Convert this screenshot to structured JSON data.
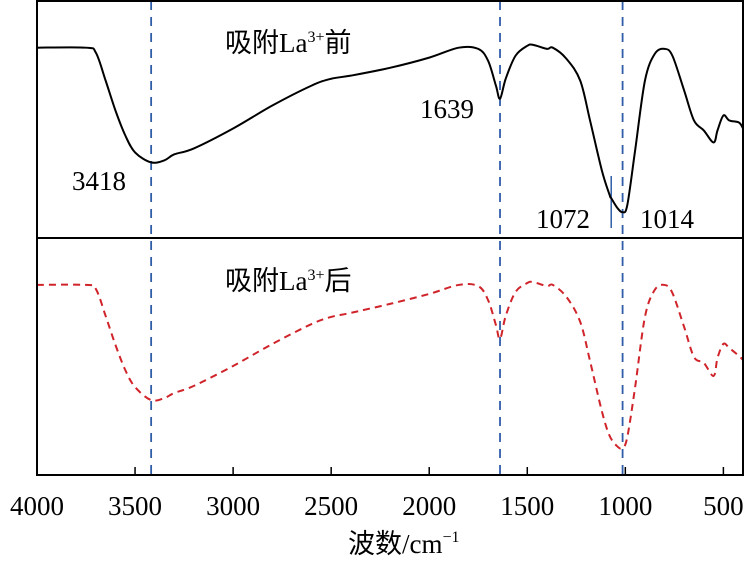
{
  "chart_data": {
    "type": "line",
    "title": "",
    "xlabel": "波数/cm⁻¹",
    "xlabel_parts": {
      "main": "波数/cm",
      "sup": "−1"
    },
    "ylabel": "",
    "xlim": [
      4000,
      400
    ],
    "x_reversed": true,
    "xticks": [
      4000,
      3500,
      3000,
      2500,
      2000,
      1500,
      1000,
      500
    ],
    "xtick_labels": [
      "4000",
      "3500",
      "3000",
      "2500",
      "2000",
      "1500",
      "1000",
      "500"
    ],
    "ylim": [
      0,
      100
    ],
    "y_units": "relative transmittance (a.u.)",
    "grid": false,
    "colors": {
      "before": "#000000",
      "after": "#d0242b",
      "reference": "#2f5ea8"
    },
    "reference_lines": [
      3418,
      1639,
      1014
    ],
    "minor_marker": 1072,
    "panels": [
      {
        "name": "before",
        "title_parts": {
          "main": "吸附La",
          "sup": "3+",
          "suffix": "前"
        },
        "line_style": "solid",
        "peak_labels": [
          "3418",
          "1639",
          "1072",
          "1014"
        ],
        "x": [
          4000,
          3750,
          3700,
          3650,
          3600,
          3550,
          3500,
          3418,
          3350,
          3300,
          3200,
          3000,
          2800,
          2600,
          2500,
          2400,
          2200,
          2000,
          1850,
          1750,
          1700,
          1660,
          1639,
          1610,
          1560,
          1500,
          1470,
          1400,
          1370,
          1300,
          1230,
          1180,
          1120,
          1080,
          1072,
          1040,
          1014,
          990,
          950,
          900,
          850,
          800,
          760,
          700,
          650,
          600,
          550,
          530,
          500,
          470,
          420,
          400
        ],
        "y": [
          80.3,
          80.3,
          78.2,
          66.4,
          53.8,
          43.3,
          36.1,
          31.9,
          32.8,
          35.3,
          37.8,
          46.2,
          55.9,
          64.3,
          67.2,
          68.5,
          71.8,
          76.1,
          80.3,
          79.8,
          74.8,
          64.3,
          58.8,
          67.2,
          76.9,
          81.1,
          81.5,
          79.8,
          80.3,
          75.6,
          66.4,
          49.6,
          28.6,
          18.1,
          16.8,
          12.6,
          10.9,
          13.9,
          37.0,
          66.4,
          77.7,
          79.8,
          76.9,
          62.2,
          49.6,
          45.4,
          40.3,
          45.4,
          51.7,
          49.6,
          48.7,
          46.2
        ]
      },
      {
        "name": "after",
        "title_parts": {
          "main": "吸附La",
          "sup": "3+",
          "suffix": "后"
        },
        "line_style": "dashed",
        "x": [
          4000,
          3750,
          3700,
          3650,
          3600,
          3550,
          3500,
          3418,
          3350,
          3300,
          3200,
          3000,
          2800,
          2600,
          2500,
          2400,
          2200,
          2000,
          1850,
          1750,
          1700,
          1660,
          1639,
          1610,
          1560,
          1500,
          1470,
          1400,
          1370,
          1300,
          1230,
          1180,
          1120,
          1080,
          1040,
          1014,
          990,
          950,
          900,
          850,
          800,
          760,
          700,
          650,
          600,
          550,
          530,
          500,
          470,
          420,
          400
        ],
        "y": [
          80.2,
          80.2,
          78.5,
          67.1,
          54.9,
          44.3,
          37.1,
          31.6,
          32.5,
          34.6,
          37.6,
          46.0,
          55.3,
          63.7,
          66.7,
          68.4,
          72.2,
          76.4,
          80.2,
          79.7,
          73.8,
          63.3,
          57.4,
          67.1,
          77.2,
          81.0,
          81.4,
          79.7,
          80.2,
          75.1,
          64.6,
          48.1,
          27.0,
          16.5,
          12.0,
          11.4,
          16.0,
          37.1,
          66.7,
          78.1,
          80.2,
          76.8,
          62.4,
          49.8,
          47.3,
          41.8,
          49.4,
          55.3,
          53.6,
          50.2,
          48.5
        ]
      }
    ]
  }
}
